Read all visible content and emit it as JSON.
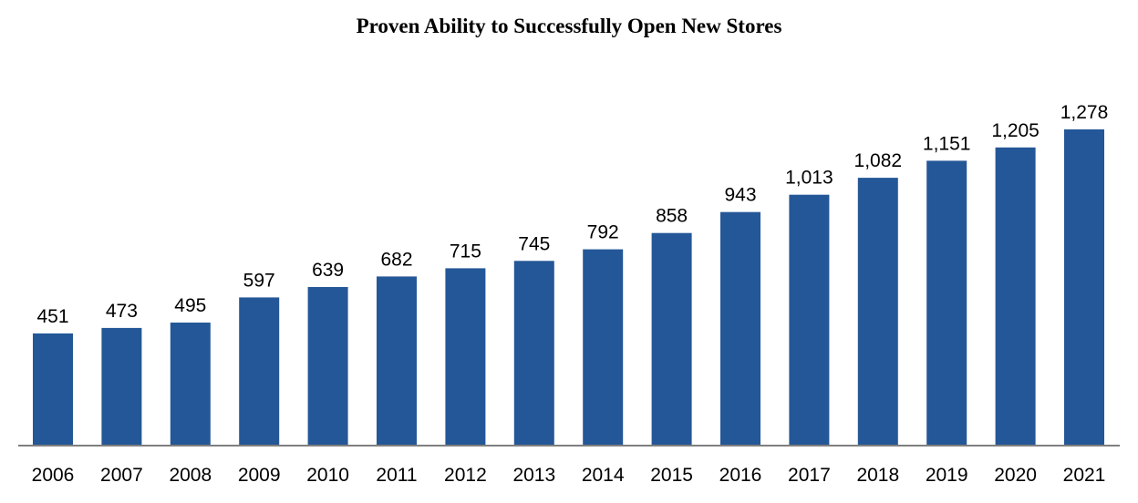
{
  "chart_data": {
    "type": "bar",
    "title": "Proven Ability to Successfully Open New Stores",
    "xlabel": "",
    "ylabel": "",
    "categories": [
      "2006",
      "2007",
      "2008",
      "2009",
      "2010",
      "2011",
      "2012",
      "2013",
      "2014",
      "2015",
      "2016",
      "2017",
      "2018",
      "2019",
      "2020",
      "2021"
    ],
    "values": [
      451,
      473,
      495,
      597,
      639,
      682,
      715,
      745,
      792,
      858,
      943,
      1013,
      1082,
      1151,
      1205,
      1278
    ],
    "value_labels": [
      "451",
      "473",
      "495",
      "597",
      "639",
      "682",
      "715",
      "745",
      "792",
      "858",
      "943",
      "1,013",
      "1,082",
      "1,151",
      "1,205",
      "1,278"
    ],
    "ylim": [
      0,
      1278
    ],
    "grid": false,
    "legend": "none",
    "colors": {
      "bar": "#245797",
      "axis": "#7f7f7f",
      "text": "#000000"
    }
  }
}
